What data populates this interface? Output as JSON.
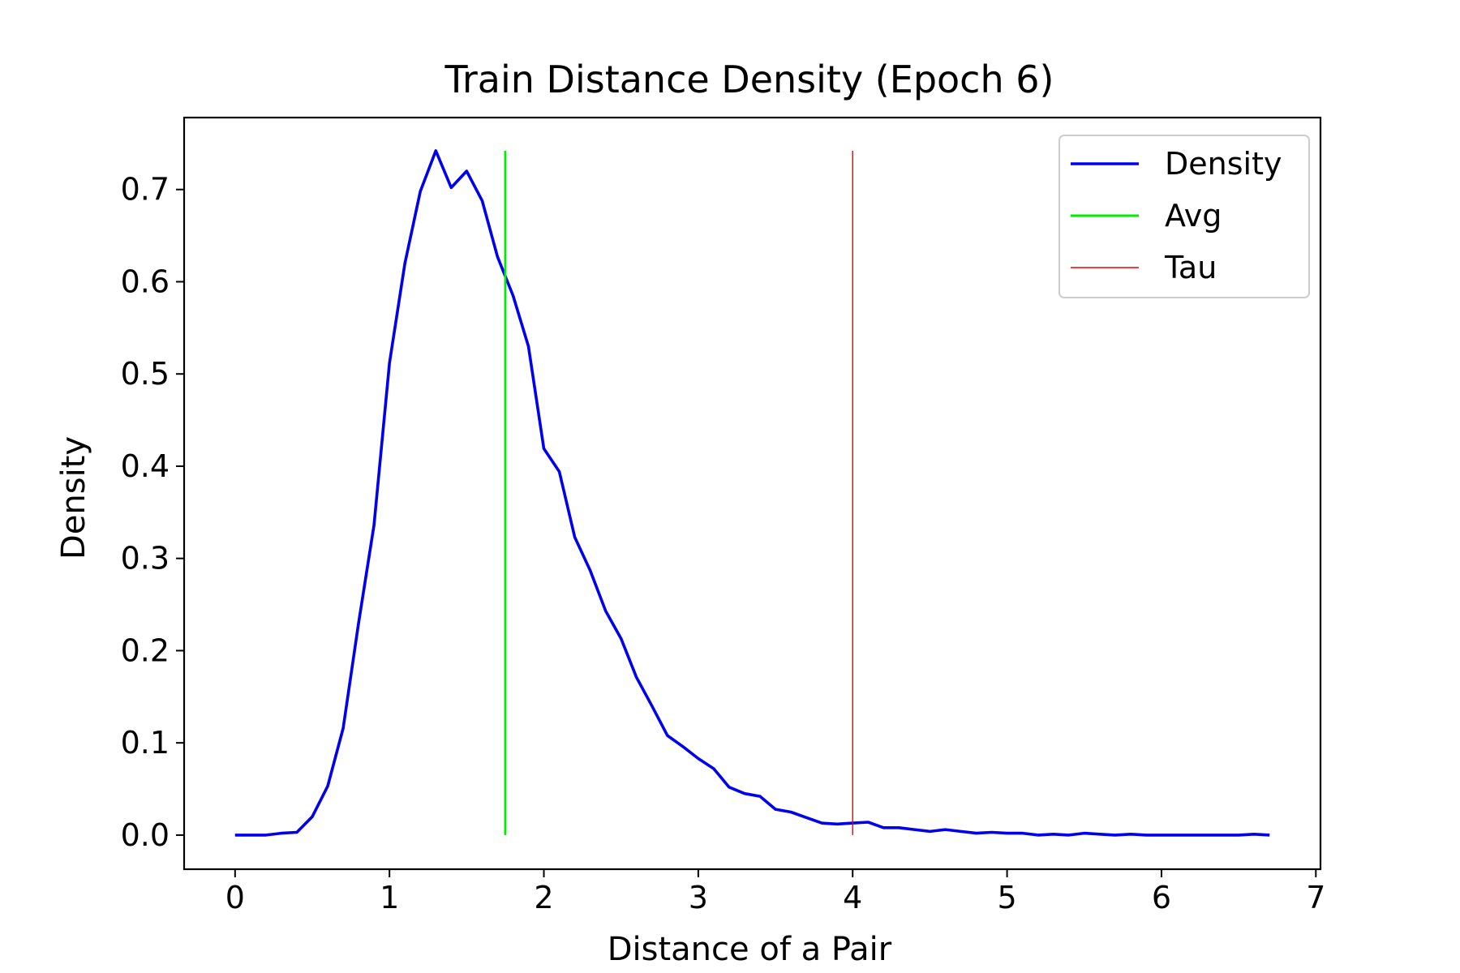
{
  "chart_data": {
    "type": "line",
    "title": "Train Distance Density (Epoch 6)",
    "xlabel": "Distance of a Pair",
    "ylabel": "Density",
    "xlim": [
      -0.33,
      7.03
    ],
    "ylim": [
      -0.037,
      0.778
    ],
    "xticks": [
      0,
      1,
      2,
      3,
      4,
      5,
      6,
      7
    ],
    "xtick_labels": [
      "0",
      "1",
      "2",
      "3",
      "4",
      "5",
      "6",
      "7"
    ],
    "yticks": [
      0.0,
      0.1,
      0.2,
      0.3,
      0.4,
      0.5,
      0.6,
      0.7
    ],
    "ytick_labels": [
      "0.0",
      "0.1",
      "0.2",
      "0.3",
      "0.4",
      "0.5",
      "0.6",
      "0.7"
    ],
    "grid": false,
    "legend_position": "top-right",
    "series": [
      {
        "name": "Density",
        "color": "#0000ee",
        "x": [
          0.0,
          0.1,
          0.2,
          0.3,
          0.4,
          0.5,
          0.6,
          0.7,
          0.8,
          0.9,
          1.0,
          1.1,
          1.2,
          1.3,
          1.4,
          1.5,
          1.6,
          1.7,
          1.8,
          1.9,
          2.0,
          2.1,
          2.2,
          2.3,
          2.4,
          2.5,
          2.6,
          2.7,
          2.8,
          2.9,
          3.0,
          3.1,
          3.2,
          3.3,
          3.4,
          3.5,
          3.6,
          3.7,
          3.8,
          3.9,
          4.0,
          4.1,
          4.2,
          4.3,
          4.4,
          4.5,
          4.6,
          4.7,
          4.8,
          4.9,
          5.0,
          5.1,
          5.2,
          5.3,
          5.4,
          5.5,
          5.6,
          5.7,
          5.8,
          5.9,
          6.0,
          6.1,
          6.2,
          6.3,
          6.4,
          6.5,
          6.6,
          6.7
        ],
        "y": [
          0.0,
          0.0,
          0.0,
          0.002,
          0.003,
          0.02,
          0.053,
          0.116,
          0.23,
          0.336,
          0.512,
          0.62,
          0.698,
          0.742,
          0.702,
          0.72,
          0.688,
          0.627,
          0.585,
          0.53,
          0.419,
          0.394,
          0.323,
          0.287,
          0.243,
          0.213,
          0.171,
          0.14,
          0.108,
          0.096,
          0.083,
          0.072,
          0.052,
          0.045,
          0.042,
          0.028,
          0.025,
          0.019,
          0.013,
          0.012,
          0.013,
          0.014,
          0.008,
          0.008,
          0.006,
          0.004,
          0.006,
          0.004,
          0.002,
          0.003,
          0.002,
          0.002,
          0.0,
          0.001,
          0.0,
          0.002,
          0.001,
          0.0,
          0.001,
          0.0,
          0.0,
          0.0,
          0.0,
          0.0,
          0.0,
          0.0,
          0.001,
          0.0
        ]
      }
    ],
    "vlines": [
      {
        "name": "Avg",
        "x": 1.75,
        "y0": 0.0,
        "y1": 0.742,
        "color": "#00ee00"
      },
      {
        "name": "Tau",
        "x": 4.0,
        "y0": 0.0,
        "y1": 0.742,
        "color": "#ee0000"
      }
    ]
  }
}
